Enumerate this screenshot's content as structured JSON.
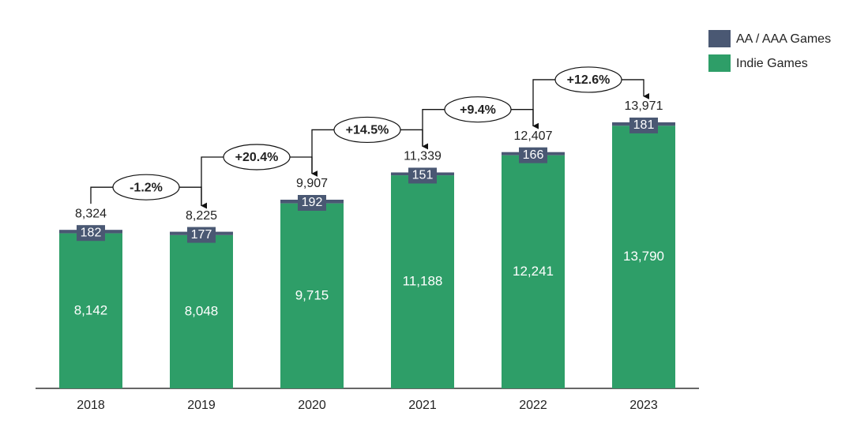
{
  "chart_data": {
    "type": "stacked-bar",
    "categories": [
      "2018",
      "2019",
      "2020",
      "2021",
      "2022",
      "2023"
    ],
    "series": [
      {
        "name": "Indie Games",
        "color": "#2e9e68",
        "values": [
          8142,
          8048,
          9715,
          11188,
          12241,
          13790
        ],
        "value_labels": [
          "8,142",
          "8,048",
          "9,715",
          "11,188",
          "12,241",
          "13,790"
        ]
      },
      {
        "name": "AA / AAA Games",
        "color": "#4a5873",
        "values": [
          182,
          177,
          192,
          151,
          166,
          181
        ]
      }
    ],
    "totals": [
      8324,
      8225,
      9907,
      11339,
      12407,
      13971
    ],
    "total_labels": [
      "8,324",
      "8,225",
      "9,907",
      "11,339",
      "12,407",
      "13,971"
    ],
    "growth_labels": [
      "-1.2%",
      "+20.4%",
      "+14.5%",
      "+9.4%",
      "+12.6%"
    ],
    "ylim": [
      0,
      16000
    ],
    "legend": "top-right"
  }
}
